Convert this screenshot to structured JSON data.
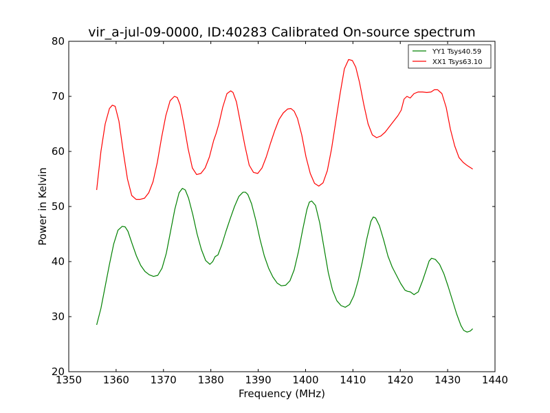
{
  "chart_data": {
    "type": "line",
    "title": "vir_a-jul-09-0000, ID:40283 Calibrated On-source spectrum",
    "xlabel": "Frequency (MHz)",
    "ylabel": "Power in Kelvin",
    "xlim": [
      1350,
      1440
    ],
    "ylim": [
      20,
      80
    ],
    "xticks": [
      1350,
      1360,
      1370,
      1380,
      1390,
      1400,
      1410,
      1420,
      1430,
      1440
    ],
    "yticks": [
      20,
      30,
      40,
      50,
      60,
      70,
      80
    ],
    "grid": false,
    "legend_position": "top-right",
    "series": [
      {
        "name": "YY1 Tsys40.59",
        "color": "#008000",
        "x": [
          1355.9,
          1356.8,
          1357.7,
          1358.6,
          1359.5,
          1360.4,
          1361.3,
          1361.9,
          1362.5,
          1363.4,
          1364.3,
          1365.2,
          1366.1,
          1367.0,
          1367.9,
          1368.8,
          1369.7,
          1370.6,
          1371.5,
          1372.4,
          1373.3,
          1374.0,
          1374.6,
          1375.3,
          1376.2,
          1377.1,
          1378.0,
          1378.9,
          1379.8,
          1380.4,
          1380.9,
          1381.5,
          1382.3,
          1383.2,
          1384.1,
          1385.0,
          1385.9,
          1386.8,
          1387.3,
          1387.8,
          1388.6,
          1389.5,
          1390.4,
          1391.3,
          1392.2,
          1393.1,
          1394.0,
          1394.9,
          1395.8,
          1396.7,
          1397.6,
          1398.5,
          1399.4,
          1400.3,
          1400.8,
          1401.3,
          1402.1,
          1403.0,
          1403.9,
          1404.8,
          1405.7,
          1406.6,
          1407.5,
          1408.4,
          1409.3,
          1410.2,
          1411.1,
          1412.0,
          1412.9,
          1413.8,
          1414.3,
          1414.8,
          1415.6,
          1416.5,
          1417.4,
          1418.3,
          1419.2,
          1420.1,
          1421.0,
          1421.5,
          1422.1,
          1422.9,
          1423.8,
          1424.7,
          1425.6,
          1426.1,
          1426.6,
          1427.4,
          1428.3,
          1429.2,
          1430.1,
          1431.0,
          1431.9,
          1432.8,
          1433.4,
          1434.1,
          1434.8,
          1435.3
        ],
        "values": [
          28.5,
          31.5,
          35.5,
          39.5,
          43.2,
          45.7,
          46.4,
          46.3,
          45.5,
          43.2,
          41.0,
          39.3,
          38.2,
          37.6,
          37.3,
          37.5,
          38.8,
          41.5,
          45.5,
          49.5,
          52.5,
          53.3,
          53.0,
          51.5,
          48.5,
          45.0,
          42.2,
          40.2,
          39.5,
          40.0,
          40.9,
          41.2,
          43.0,
          45.5,
          47.8,
          50.0,
          51.8,
          52.6,
          52.6,
          52.2,
          50.5,
          47.5,
          44.0,
          41.0,
          38.8,
          37.2,
          36.1,
          35.6,
          35.7,
          36.5,
          38.5,
          41.8,
          45.8,
          49.5,
          50.8,
          51.0,
          50.2,
          47.0,
          42.5,
          38.0,
          34.8,
          32.9,
          32.0,
          31.7,
          32.2,
          33.8,
          36.5,
          40.0,
          44.0,
          47.3,
          48.1,
          47.9,
          46.5,
          43.9,
          41.0,
          39.0,
          37.5,
          36.0,
          34.8,
          34.6,
          34.5,
          34.0,
          34.5,
          36.5,
          38.8,
          40.1,
          40.6,
          40.4,
          39.5,
          37.8,
          35.5,
          33.0,
          30.5,
          28.4,
          27.5,
          27.2,
          27.4,
          27.8
        ]
      },
      {
        "name": "XX1 Tsys63.10",
        "color": "#ff0000",
        "x": [
          1355.9,
          1356.8,
          1357.7,
          1358.6,
          1359.2,
          1359.8,
          1360.6,
          1361.5,
          1362.4,
          1363.3,
          1364.2,
          1365.1,
          1366.0,
          1366.9,
          1367.8,
          1368.7,
          1369.6,
          1370.5,
          1371.4,
          1372.3,
          1372.9,
          1373.5,
          1374.3,
          1375.2,
          1376.1,
          1377.0,
          1377.9,
          1378.8,
          1379.7,
          1380.6,
          1381.1,
          1381.7,
          1382.5,
          1383.4,
          1384.2,
          1384.7,
          1385.4,
          1386.3,
          1387.2,
          1388.1,
          1389.0,
          1389.9,
          1390.8,
          1391.7,
          1392.6,
          1393.5,
          1394.4,
          1395.3,
          1396.2,
          1396.9,
          1397.6,
          1398.3,
          1399.2,
          1400.1,
          1401.0,
          1401.9,
          1402.8,
          1403.7,
          1404.6,
          1405.5,
          1406.4,
          1407.3,
          1408.2,
          1409.1,
          1409.9,
          1410.6,
          1411.4,
          1412.3,
          1413.2,
          1414.1,
          1415.0,
          1415.9,
          1416.8,
          1417.7,
          1418.6,
          1419.5,
          1420.2,
          1420.8,
          1421.4,
          1422.1,
          1422.9,
          1423.8,
          1424.7,
          1425.6,
          1426.5,
          1427.2,
          1427.9,
          1428.8,
          1429.7,
          1430.6,
          1431.5,
          1432.4,
          1433.3,
          1434.2,
          1435.3
        ],
        "values": [
          53.0,
          60.0,
          65.0,
          67.8,
          68.4,
          68.2,
          65.5,
          60.0,
          55.0,
          52.0,
          51.3,
          51.3,
          51.5,
          52.5,
          54.5,
          58.0,
          62.5,
          66.5,
          69.2,
          70.0,
          69.8,
          68.5,
          65.0,
          60.5,
          57.0,
          55.8,
          56.0,
          57.0,
          59.0,
          62.0,
          63.2,
          65.0,
          68.0,
          70.5,
          71.0,
          70.7,
          69.0,
          65.0,
          61.0,
          57.5,
          56.2,
          56.0,
          57.0,
          59.0,
          61.5,
          63.8,
          65.8,
          67.0,
          67.7,
          67.8,
          67.3,
          66.0,
          63.0,
          59.0,
          56.0,
          54.2,
          53.7,
          54.3,
          56.5,
          60.5,
          65.5,
          70.5,
          75.0,
          76.7,
          76.5,
          75.3,
          72.5,
          68.5,
          65.0,
          63.0,
          62.5,
          62.8,
          63.5,
          64.5,
          65.5,
          66.5,
          67.5,
          69.5,
          70.0,
          69.7,
          70.5,
          70.8,
          70.8,
          70.7,
          70.8,
          71.2,
          71.2,
          70.5,
          68.0,
          64.0,
          61.0,
          58.9,
          58.0,
          57.4,
          56.8
        ]
      }
    ]
  }
}
